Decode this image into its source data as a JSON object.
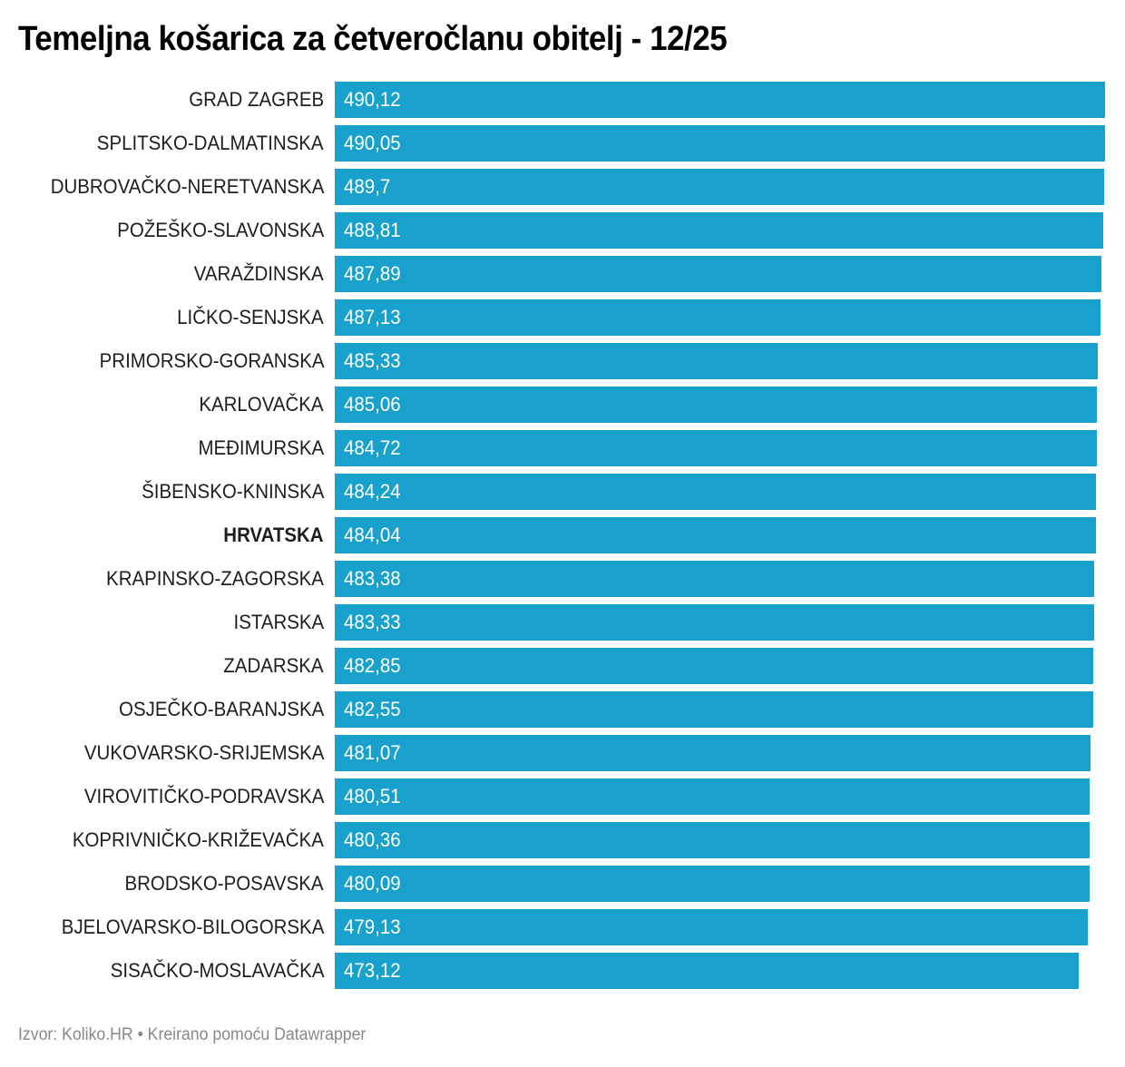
{
  "title": "Temeljna košarica za četveročlanu obitelj - 12/25",
  "footer": "Izvor: Koliko.HR • Kreirano pomoću Datawrapper",
  "colors": {
    "bar": "#18a1cd",
    "label": "#1d1d1d",
    "value": "#ffffff",
    "footer": "#888888"
  },
  "rows": [
    {
      "label": "GRAD ZAGREB",
      "value": "490,12",
      "num": 490.12,
      "bold": false
    },
    {
      "label": "SPLITSKO-DALMATINSKA",
      "value": "490,05",
      "num": 490.05,
      "bold": false
    },
    {
      "label": "DUBROVAČKO-NERETVANSKA",
      "value": "489,7",
      "num": 489.7,
      "bold": false
    },
    {
      "label": "POŽEŠKO-SLAVONSKA",
      "value": "488,81",
      "num": 488.81,
      "bold": false
    },
    {
      "label": "VARAŽDINSKA",
      "value": "487,89",
      "num": 487.89,
      "bold": false
    },
    {
      "label": "LIČKO-SENJSKA",
      "value": "487,13",
      "num": 487.13,
      "bold": false
    },
    {
      "label": "PRIMORSKO-GORANSKA",
      "value": "485,33",
      "num": 485.33,
      "bold": false
    },
    {
      "label": "KARLOVAČKA",
      "value": "485,06",
      "num": 485.06,
      "bold": false
    },
    {
      "label": "MEĐIMURSKA",
      "value": "484,72",
      "num": 484.72,
      "bold": false
    },
    {
      "label": "ŠIBENSKO-KNINSKA",
      "value": "484,24",
      "num": 484.24,
      "bold": false
    },
    {
      "label": "HRVATSKA",
      "value": "484,04",
      "num": 484.04,
      "bold": true
    },
    {
      "label": "KRAPINSKO-ZAGORSKA",
      "value": "483,38",
      "num": 483.38,
      "bold": false
    },
    {
      "label": "ISTARSKA",
      "value": "483,33",
      "num": 483.33,
      "bold": false
    },
    {
      "label": "ZADARSKA",
      "value": "482,85",
      "num": 482.85,
      "bold": false
    },
    {
      "label": "OSJEČKO-BARANJSKA",
      "value": "482,55",
      "num": 482.55,
      "bold": false
    },
    {
      "label": "VUKOVARSKO-SRIJEMSKA",
      "value": "481,07",
      "num": 481.07,
      "bold": false
    },
    {
      "label": "VIROVITIČKO-PODRAVSKA",
      "value": "480,51",
      "num": 480.51,
      "bold": false
    },
    {
      "label": "KOPRIVNIČKO-KRIŽEVAČKA",
      "value": "480,36",
      "num": 480.36,
      "bold": false
    },
    {
      "label": "BRODSKO-POSAVSKA",
      "value": "480,09",
      "num": 480.09,
      "bold": false
    },
    {
      "label": "BJELOVARSKO-BILOGORSKA",
      "value": "479,13",
      "num": 479.13,
      "bold": false
    },
    {
      "label": "SISAČKO-MOSLAVAČKA",
      "value": "473,12",
      "num": 473.12,
      "bold": false
    }
  ],
  "chart_data": {
    "type": "bar",
    "orientation": "horizontal",
    "title": "Temeljna košarica za četveročlanu obitelj - 12/25",
    "source": "Izvor: Koliko.HR • Kreirano pomoću Datawrapper",
    "xlabel": "",
    "ylabel": "",
    "grid": false,
    "legend": null,
    "xlim": [
      0,
      490.12
    ],
    "categories": [
      "GRAD ZAGREB",
      "SPLITSKO-DALMATINSKA",
      "DUBROVAČKO-NERETVANSKA",
      "POŽEŠKO-SLAVONSKA",
      "VARAŽDINSKA",
      "LIČKO-SENJSKA",
      "PRIMORSKO-GORANSKA",
      "KARLOVAČKA",
      "MEĐIMURSKA",
      "ŠIBENSKO-KNINSKA",
      "HRVATSKA",
      "KRAPINSKO-ZAGORSKA",
      "ISTARSKA",
      "ZADARSKA",
      "OSJEČKO-BARANJSKA",
      "VUKOVARSKO-SRIJEMSKA",
      "VIROVITIČKO-PODRAVSKA",
      "KOPRIVNIČKO-KRIŽEVAČKA",
      "BRODSKO-POSAVSKA",
      "BJELOVARSKO-BILOGORSKA",
      "SISAČKO-MOSLAVAČKA"
    ],
    "values": [
      490.12,
      490.05,
      489.7,
      488.81,
      487.89,
      487.13,
      485.33,
      485.06,
      484.72,
      484.24,
      484.04,
      483.38,
      483.33,
      482.85,
      482.55,
      481.07,
      480.51,
      480.36,
      480.09,
      479.13,
      473.12
    ],
    "highlighted_category": "HRVATSKA",
    "bar_color": "#18a1cd"
  }
}
